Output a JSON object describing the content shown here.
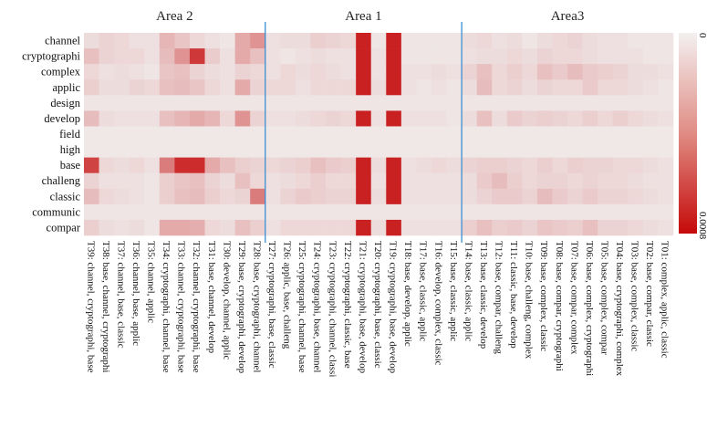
{
  "chart_data": {
    "type": "heatmap",
    "title": "",
    "areas": [
      {
        "label": "Area 2",
        "from_column": "T39",
        "to_column": "T28"
      },
      {
        "label": "Area 1",
        "from_column": "T27",
        "to_column": "T15"
      },
      {
        "label": "Area3",
        "from_column": "T14",
        "to_column": "T01"
      }
    ],
    "rows": [
      "channel",
      "cryptographi",
      "complex",
      "applic",
      "design",
      "develop",
      "field",
      "high",
      "base",
      "challeng",
      "classic",
      "communic",
      "compar"
    ],
    "columns": [
      "T39: channel, cryptographi, base",
      "T38: base, channel, cryptographi",
      "T37: channel, base, classic",
      "T36: channel, base, applic",
      "T35: channel, applic",
      "T34: cryptographi, channel, base",
      "T33: channel, cryptographi, base",
      "T32: channel, cryptographi, base",
      "T31: base, channel, develop",
      "T30: develop, channel, applic",
      "T29: base, cryptographi, develop",
      "T28: base, cryptographi, channel",
      "T27: cryptographi, base, classic",
      "T26: applic, base, challeng",
      "T25: cryptographi, channel, base",
      "T24: cryptographi, base, channel",
      "T23: cryptographi, channel, classi",
      "T22: cryptographi, classic, base",
      "T21: cryptographi, base, develop",
      "T20: cryptographi, base, classic",
      "T19: cryptographi, base, develop",
      "T18: base, develop, applic",
      "T17: base, classic, applic",
      "T16: develop, complex, classic",
      "T15: base, classic, applic",
      "T14: base, classic, applic",
      "T13: base, classic, develop",
      "T12: base, compar, challeng",
      "T11: classic, base, develop",
      "T10: base, challeng, complex",
      "T09: base, complex, classic",
      "T08: base, compar, cryptographi",
      "T07: base, compar, complex",
      "T06: base, complex, cryptographi",
      "T05: base, complex, compar",
      "T04: base, cryptographi, complex",
      "T03: base, complex, classic",
      "T02: base, compar, classic",
      "T01: complex, applic, classic"
    ],
    "values": [
      [
        0.08,
        0.12,
        0.1,
        0.06,
        0.06,
        0.25,
        0.18,
        0.1,
        0.06,
        0.04,
        0.3,
        0.4,
        0.06,
        0.08,
        0.08,
        0.14,
        0.12,
        0.1,
        0.9,
        0.04,
        0.9,
        0.04,
        0.04,
        0.04,
        0.04,
        0.08,
        0.1,
        0.06,
        0.08,
        0.04,
        0.08,
        0.1,
        0.12,
        0.08,
        0.06,
        0.06,
        0.04,
        0.04,
        0.04
      ],
      [
        0.2,
        0.12,
        0.1,
        0.1,
        0.06,
        0.22,
        0.4,
        0.8,
        0.15,
        0.06,
        0.3,
        0.2,
        0.06,
        0.04,
        0.06,
        0.08,
        0.06,
        0.06,
        0.9,
        0.06,
        0.9,
        0.04,
        0.04,
        0.04,
        0.04,
        0.06,
        0.08,
        0.08,
        0.1,
        0.08,
        0.12,
        0.1,
        0.1,
        0.08,
        0.06,
        0.06,
        0.06,
        0.04,
        0.04
      ],
      [
        0.1,
        0.06,
        0.08,
        0.06,
        0.04,
        0.18,
        0.2,
        0.12,
        0.08,
        0.06,
        0.12,
        0.1,
        0.06,
        0.1,
        0.08,
        0.1,
        0.08,
        0.06,
        0.9,
        0.06,
        0.9,
        0.06,
        0.06,
        0.08,
        0.06,
        0.12,
        0.2,
        0.1,
        0.14,
        0.1,
        0.2,
        0.16,
        0.22,
        0.16,
        0.14,
        0.12,
        0.08,
        0.08,
        0.06
      ],
      [
        0.14,
        0.08,
        0.08,
        0.12,
        0.1,
        0.2,
        0.22,
        0.18,
        0.1,
        0.06,
        0.3,
        0.12,
        0.1,
        0.1,
        0.06,
        0.1,
        0.1,
        0.1,
        0.9,
        0.08,
        0.9,
        0.06,
        0.04,
        0.06,
        0.04,
        0.08,
        0.22,
        0.1,
        0.12,
        0.08,
        0.12,
        0.1,
        0.1,
        0.16,
        0.1,
        0.1,
        0.08,
        0.06,
        0.04
      ],
      [
        0.04,
        0.04,
        0.04,
        0.04,
        0.04,
        0.04,
        0.04,
        0.04,
        0.04,
        0.04,
        0.04,
        0.04,
        0.04,
        0.04,
        0.04,
        0.04,
        0.04,
        0.04,
        0.04,
        0.04,
        0.04,
        0.04,
        0.04,
        0.04,
        0.04,
        0.04,
        0.04,
        0.04,
        0.04,
        0.04,
        0.04,
        0.04,
        0.04,
        0.04,
        0.04,
        0.04,
        0.04,
        0.04,
        0.04
      ],
      [
        0.22,
        0.08,
        0.06,
        0.06,
        0.06,
        0.2,
        0.25,
        0.3,
        0.25,
        0.1,
        0.4,
        0.12,
        0.06,
        0.06,
        0.08,
        0.1,
        0.12,
        0.1,
        0.9,
        0.06,
        0.9,
        0.06,
        0.06,
        0.06,
        0.04,
        0.08,
        0.2,
        0.08,
        0.16,
        0.12,
        0.14,
        0.12,
        0.1,
        0.14,
        0.1,
        0.14,
        0.1,
        0.08,
        0.06
      ],
      [
        0.03,
        0.03,
        0.03,
        0.03,
        0.03,
        0.03,
        0.03,
        0.03,
        0.03,
        0.03,
        0.03,
        0.03,
        0.03,
        0.03,
        0.03,
        0.03,
        0.03,
        0.03,
        0.03,
        0.03,
        0.03,
        0.03,
        0.03,
        0.03,
        0.03,
        0.03,
        0.03,
        0.03,
        0.03,
        0.03,
        0.03,
        0.03,
        0.03,
        0.03,
        0.03,
        0.03,
        0.03,
        0.03,
        0.03
      ],
      [
        0.03,
        0.03,
        0.03,
        0.03,
        0.03,
        0.03,
        0.03,
        0.03,
        0.03,
        0.03,
        0.03,
        0.03,
        0.03,
        0.03,
        0.03,
        0.03,
        0.03,
        0.03,
        0.03,
        0.03,
        0.03,
        0.03,
        0.03,
        0.03,
        0.03,
        0.03,
        0.03,
        0.03,
        0.03,
        0.03,
        0.03,
        0.03,
        0.03,
        0.03,
        0.03,
        0.03,
        0.03,
        0.03,
        0.03
      ],
      [
        0.75,
        0.1,
        0.08,
        0.1,
        0.06,
        0.5,
        0.85,
        0.85,
        0.3,
        0.2,
        0.14,
        0.12,
        0.1,
        0.12,
        0.14,
        0.2,
        0.16,
        0.14,
        0.9,
        0.08,
        0.9,
        0.06,
        0.08,
        0.1,
        0.08,
        0.12,
        0.14,
        0.14,
        0.12,
        0.1,
        0.14,
        0.1,
        0.14,
        0.12,
        0.12,
        0.1,
        0.1,
        0.08,
        0.06
      ],
      [
        0.12,
        0.06,
        0.06,
        0.06,
        0.04,
        0.14,
        0.18,
        0.2,
        0.12,
        0.08,
        0.2,
        0.1,
        0.06,
        0.08,
        0.1,
        0.14,
        0.1,
        0.1,
        0.9,
        0.06,
        0.9,
        0.06,
        0.06,
        0.06,
        0.06,
        0.08,
        0.16,
        0.22,
        0.14,
        0.1,
        0.12,
        0.12,
        0.1,
        0.12,
        0.1,
        0.1,
        0.08,
        0.06,
        0.06
      ],
      [
        0.22,
        0.1,
        0.08,
        0.06,
        0.04,
        0.14,
        0.2,
        0.22,
        0.14,
        0.1,
        0.12,
        0.5,
        0.06,
        0.12,
        0.16,
        0.14,
        0.12,
        0.12,
        0.9,
        0.08,
        0.9,
        0.06,
        0.06,
        0.06,
        0.06,
        0.08,
        0.12,
        0.16,
        0.16,
        0.12,
        0.22,
        0.16,
        0.12,
        0.16,
        0.12,
        0.12,
        0.1,
        0.08,
        0.06
      ],
      [
        0.04,
        0.04,
        0.04,
        0.04,
        0.04,
        0.04,
        0.04,
        0.04,
        0.04,
        0.04,
        0.04,
        0.04,
        0.04,
        0.04,
        0.04,
        0.04,
        0.04,
        0.04,
        0.04,
        0.04,
        0.04,
        0.04,
        0.04,
        0.04,
        0.04,
        0.04,
        0.04,
        0.04,
        0.04,
        0.04,
        0.04,
        0.04,
        0.04,
        0.04,
        0.04,
        0.04,
        0.04,
        0.04,
        0.04
      ],
      [
        0.14,
        0.08,
        0.06,
        0.08,
        0.04,
        0.3,
        0.3,
        0.28,
        0.1,
        0.08,
        0.2,
        0.14,
        0.06,
        0.1,
        0.1,
        0.1,
        0.1,
        0.1,
        0.9,
        0.08,
        0.9,
        0.06,
        0.06,
        0.06,
        0.06,
        0.14,
        0.2,
        0.14,
        0.16,
        0.12,
        0.18,
        0.16,
        0.14,
        0.2,
        0.12,
        0.12,
        0.1,
        0.08,
        0.06
      ]
    ],
    "colors": {
      "low": "#f1eeee",
      "high": "#c50a0a",
      "separator": "#3b8fd1"
    },
    "colorbar": {
      "position": "right",
      "top_label": "0",
      "bottom_label": "0.0008"
    },
    "grid": false
  }
}
